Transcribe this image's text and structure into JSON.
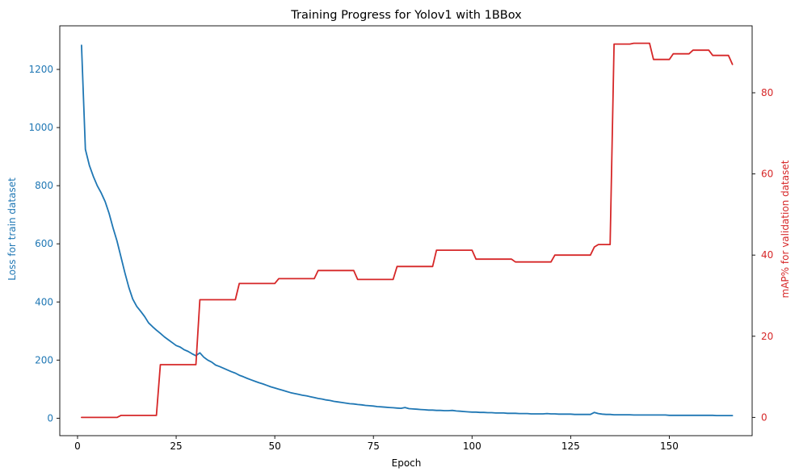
{
  "chart_data": {
    "type": "line",
    "title": "Training Progress for Yolov1 with 1BBox",
    "xlabel": "Epoch",
    "ylabel_left": "Loss for train dataset",
    "ylabel_right": "mAP% for validation dataset",
    "xlim": [
      -4.5,
      171
    ],
    "ylim_left": [
      -60,
      1350
    ],
    "ylim_right": [
      -4.5,
      96.5
    ],
    "xticks": [
      0,
      25,
      50,
      75,
      100,
      125,
      150
    ],
    "yticks_left": [
      0,
      200,
      400,
      600,
      800,
      1000,
      1200
    ],
    "yticks_right": [
      0,
      20,
      40,
      60,
      80
    ],
    "grid": false,
    "colors": {
      "loss": "#1f77b4",
      "map": "#d62728",
      "axis": "#000000"
    },
    "series": [
      {
        "axis": "left",
        "color": "#1f77b4",
        "x": [
          1,
          2,
          3,
          4,
          5,
          6,
          7,
          8,
          9,
          10,
          11,
          12,
          13,
          14,
          15,
          16,
          17,
          18,
          19,
          20,
          21,
          22,
          23,
          24,
          25,
          26,
          27,
          28,
          29,
          30,
          31,
          32,
          33,
          34,
          35,
          36,
          37,
          38,
          39,
          40,
          41,
          42,
          43,
          44,
          45,
          46,
          47,
          48,
          49,
          50,
          51,
          52,
          53,
          54,
          55,
          56,
          57,
          58,
          59,
          60,
          61,
          62,
          63,
          64,
          65,
          66,
          67,
          68,
          69,
          70,
          71,
          72,
          73,
          74,
          75,
          76,
          77,
          78,
          79,
          80,
          81,
          82,
          83,
          84,
          85,
          86,
          87,
          88,
          89,
          90,
          91,
          92,
          93,
          94,
          95,
          96,
          97,
          98,
          99,
          100,
          101,
          102,
          103,
          104,
          105,
          106,
          107,
          108,
          109,
          110,
          111,
          112,
          113,
          114,
          115,
          116,
          117,
          118,
          119,
          120,
          121,
          122,
          123,
          124,
          125,
          126,
          127,
          128,
          129,
          130,
          131,
          132,
          133,
          134,
          135,
          136,
          137,
          138,
          139,
          140,
          141,
          142,
          143,
          144,
          145,
          146,
          147,
          148,
          149,
          150,
          151,
          152,
          153,
          154,
          155,
          156,
          157,
          158,
          159,
          160,
          161,
          162,
          163,
          164,
          165,
          166
        ],
        "values": [
          1283,
          925,
          870,
          832,
          800,
          775,
          745,
          705,
          655,
          610,
          555,
          500,
          450,
          410,
          385,
          368,
          350,
          328,
          315,
          303,
          292,
          280,
          270,
          260,
          250,
          245,
          236,
          230,
          222,
          215,
          225,
          210,
          200,
          193,
          183,
          178,
          172,
          166,
          160,
          155,
          148,
          143,
          137,
          132,
          127,
          122,
          118,
          113,
          108,
          104,
          100,
          96,
          92,
          88,
          85,
          82,
          79,
          77,
          74,
          71,
          68,
          66,
          63,
          61,
          58,
          56,
          54,
          52,
          50,
          49,
          47,
          46,
          44,
          43,
          42,
          40,
          39,
          38,
          37,
          36,
          35,
          34,
          37,
          33,
          32,
          31,
          30,
          29,
          28,
          28,
          27,
          27,
          26,
          26,
          27,
          25,
          24,
          23,
          22,
          21,
          21,
          20,
          20,
          19,
          19,
          18,
          18,
          18,
          17,
          17,
          17,
          16,
          16,
          16,
          15,
          15,
          15,
          15,
          16,
          15,
          15,
          14,
          14,
          14,
          14,
          13,
          13,
          13,
          13,
          13,
          20,
          16,
          14,
          13,
          13,
          12,
          12,
          12,
          12,
          12,
          11,
          11,
          11,
          11,
          11,
          11,
          11,
          11,
          11,
          10,
          10,
          10,
          10,
          10,
          10,
          10,
          10,
          10,
          10,
          10,
          10,
          9,
          9,
          9,
          9,
          9
        ]
      },
      {
        "axis": "right",
        "color": "#d62728",
        "x": [
          1,
          10,
          11,
          20,
          21,
          30,
          31,
          40,
          41,
          50,
          51,
          60,
          61,
          70,
          71,
          80,
          81,
          90,
          91,
          100,
          101,
          110,
          111,
          120,
          121,
          130,
          131,
          132,
          135,
          136,
          140,
          141,
          145,
          146,
          150,
          151,
          155,
          156,
          160,
          161,
          165,
          166
        ],
        "values": [
          0,
          0,
          0.5,
          0.5,
          13,
          13,
          29,
          29,
          33,
          33,
          34.2,
          34.2,
          36.2,
          36.2,
          34,
          34,
          37.2,
          37.2,
          41.2,
          41.2,
          39,
          39,
          38.3,
          38.3,
          40,
          40,
          42,
          42.6,
          42.6,
          92,
          92,
          92.2,
          92.2,
          88.2,
          88.2,
          89.6,
          89.6,
          90.5,
          90.5,
          89.2,
          89.2,
          87
        ]
      }
    ]
  }
}
